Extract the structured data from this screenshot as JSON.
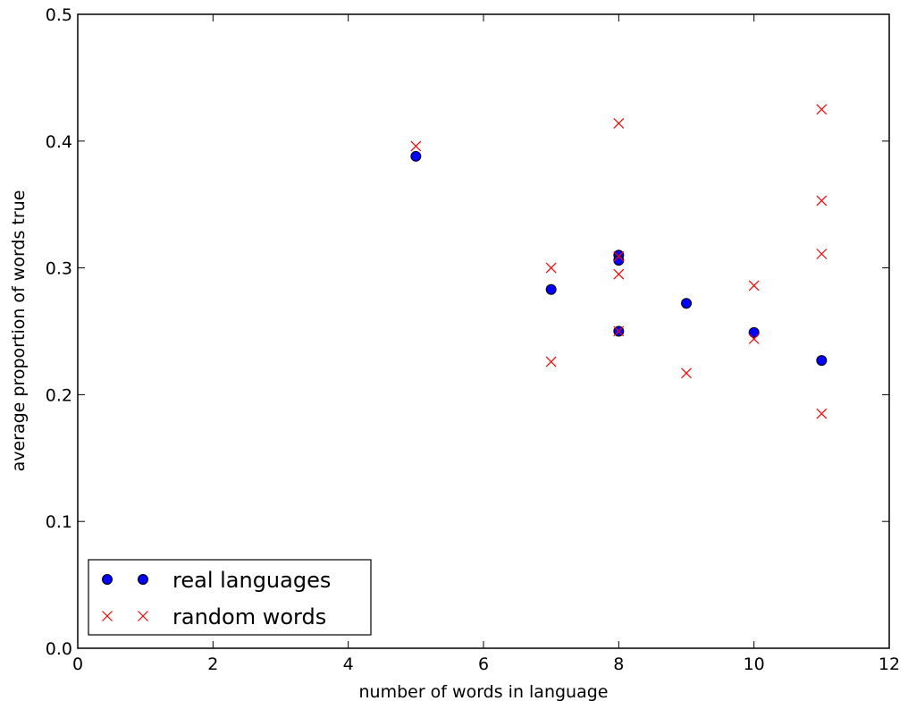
{
  "chart_data": {
    "type": "scatter",
    "title": "",
    "xlabel": "number of words in language",
    "ylabel": "average proportion of words true",
    "xlim": [
      0,
      12
    ],
    "ylim": [
      0.0,
      0.5
    ],
    "xticks": [
      0,
      2,
      4,
      6,
      8,
      10,
      12
    ],
    "xtick_labels": [
      "0",
      "2",
      "4",
      "6",
      "8",
      "10",
      "12"
    ],
    "yticks": [
      0.0,
      0.1,
      0.2,
      0.3,
      0.4,
      0.5
    ],
    "ytick_labels": [
      "0.0",
      "0.1",
      "0.2",
      "0.3",
      "0.4",
      "0.5"
    ],
    "grid": false,
    "legend_position": "lower-left",
    "series": [
      {
        "name": "real languages",
        "marker": "circle",
        "color": "#0000ff",
        "points": [
          {
            "x": 5,
            "y": 0.388
          },
          {
            "x": 7,
            "y": 0.283
          },
          {
            "x": 8,
            "y": 0.31
          },
          {
            "x": 8,
            "y": 0.306
          },
          {
            "x": 8,
            "y": 0.25
          },
          {
            "x": 9,
            "y": 0.272
          },
          {
            "x": 10,
            "y": 0.249
          },
          {
            "x": 11,
            "y": 0.227
          }
        ]
      },
      {
        "name": "random words",
        "marker": "x",
        "color": "#ff0000",
        "points": [
          {
            "x": 5,
            "y": 0.396
          },
          {
            "x": 7,
            "y": 0.3
          },
          {
            "x": 7,
            "y": 0.226
          },
          {
            "x": 8,
            "y": 0.414
          },
          {
            "x": 8,
            "y": 0.309
          },
          {
            "x": 8,
            "y": 0.295
          },
          {
            "x": 8,
            "y": 0.25
          },
          {
            "x": 9,
            "y": 0.217
          },
          {
            "x": 10,
            "y": 0.286
          },
          {
            "x": 10,
            "y": 0.244
          },
          {
            "x": 11,
            "y": 0.425
          },
          {
            "x": 11,
            "y": 0.353
          },
          {
            "x": 11,
            "y": 0.311
          },
          {
            "x": 11,
            "y": 0.185
          }
        ]
      }
    ]
  }
}
